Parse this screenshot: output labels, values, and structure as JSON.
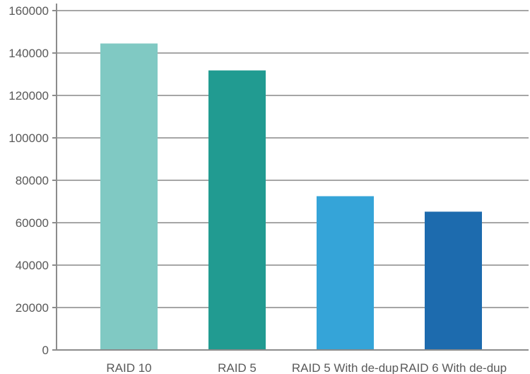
{
  "chart_data": {
    "type": "bar",
    "categories": [
      "RAID 10",
      "RAID 5",
      "RAID 5 With de-dup",
      "RAID 6 With de-dup"
    ],
    "values": [
      144500,
      131800,
      72500,
      65200
    ],
    "bar_colors": [
      "#80c9c3",
      "#219b91",
      "#35a4d8",
      "#1d6bae"
    ],
    "ylim": [
      0,
      160000
    ],
    "yticks": [
      0,
      20000,
      40000,
      60000,
      80000,
      100000,
      120000,
      140000,
      160000
    ],
    "grid": true,
    "grid_color": "#a6a6a6",
    "axis_color": "#8c8c8c",
    "title": "",
    "xlabel": "",
    "ylabel": ""
  }
}
